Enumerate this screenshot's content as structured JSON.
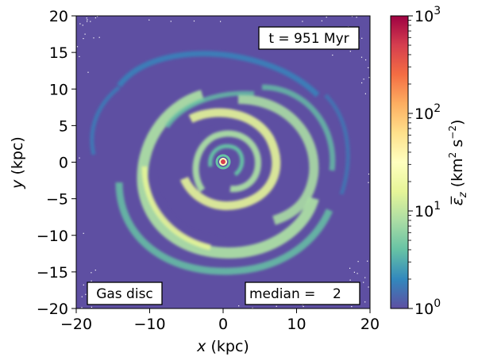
{
  "chart_data": {
    "type": "heatmap",
    "xlabel_var": "x",
    "xlabel_unit": "(kpc)",
    "ylabel_var": "y",
    "ylabel_unit": "(kpc)",
    "xlim": [
      -20,
      20
    ],
    "ylim": [
      -20,
      20
    ],
    "xticks": [
      "−20",
      "−10",
      "0",
      "10",
      "20"
    ],
    "xtick_values": [
      -20,
      -10,
      0,
      10,
      20
    ],
    "yticks": [
      "−20",
      "−15",
      "−10",
      "−5",
      "0",
      "5",
      "10",
      "15",
      "20"
    ],
    "ytick_values": [
      -20,
      -15,
      -10,
      -5,
      0,
      5,
      10,
      15,
      20
    ],
    "colorbar": {
      "scale": "log",
      "range": [
        1,
        1000
      ],
      "tick_labels": [
        {
          "base": "10",
          "exp": "0"
        },
        {
          "base": "10",
          "exp": "1"
        },
        {
          "base": "10",
          "exp": "2"
        },
        {
          "base": "10",
          "exp": "3"
        }
      ],
      "label_symbol": "ε̅",
      "label_sub": "z",
      "label_unit_open": "(km",
      "label_unit_sq": "2",
      "label_unit_s": " s",
      "label_unit_exp": "−2",
      "label_unit_close": ")",
      "colormap": "Spectral_r",
      "colors": [
        "#5e4fa2",
        "#3288bd",
        "#66c2a5",
        "#abdda4",
        "#e6f598",
        "#ffffbf",
        "#fee08b",
        "#fdae61",
        "#f46d43",
        "#d53e4f",
        "#9e0142"
      ]
    },
    "annotations": {
      "time": "t = 951 Myr",
      "component": "Gas disc",
      "median": "median =    2"
    },
    "background_color": "#5e4fa2",
    "description_color_arm": "#abdda4"
  }
}
